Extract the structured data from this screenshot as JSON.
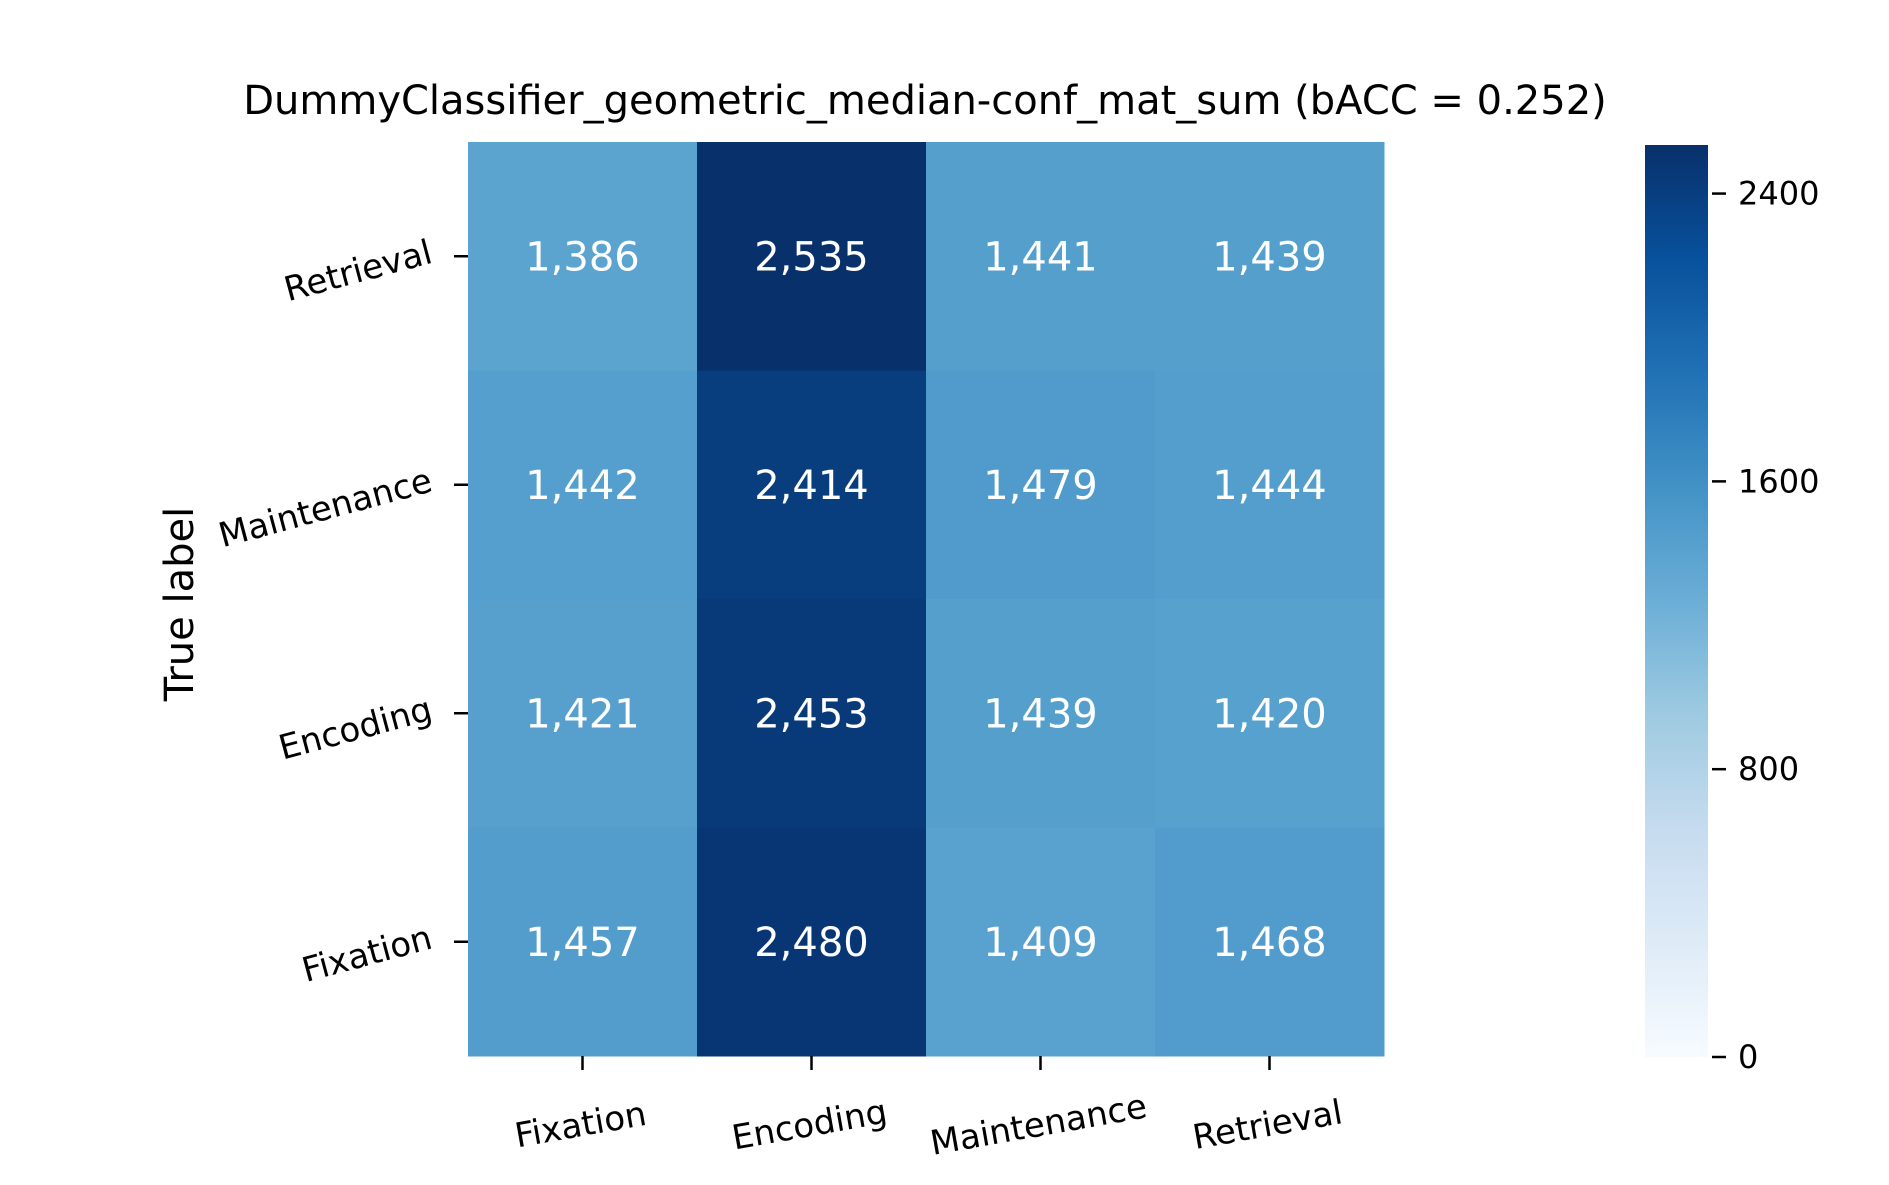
{
  "chart_data": {
    "type": "heatmap",
    "title": "DummyClassifier_geometric_median-conf_mat_sum (bACC = 0.252)",
    "ylabel": "True label",
    "xlabel": "",
    "x_categories": [
      "Fixation",
      "Encoding",
      "Maintenance",
      "Retrieval"
    ],
    "y_categories": [
      "Retrieval",
      "Maintenance",
      "Encoding",
      "Fixation"
    ],
    "values": [
      [
        1386,
        2535,
        1441,
        1439
      ],
      [
        1442,
        2414,
        1479,
        1444
      ],
      [
        1421,
        2453,
        1439,
        1420
      ],
      [
        1457,
        2480,
        1409,
        1468
      ]
    ],
    "value_labels": [
      [
        "1,386",
        "2,535",
        "1,441",
        "1,439"
      ],
      [
        "1,442",
        "2,414",
        "1,479",
        "1,444"
      ],
      [
        "1,421",
        "2,453",
        "1,439",
        "1,420"
      ],
      [
        "1,457",
        "2,480",
        "1,409",
        "1,468"
      ]
    ],
    "colormap": "Blues",
    "color_range": [
      0,
      2535
    ],
    "colorbar": {
      "ticks": [
        0,
        800,
        1600,
        2400
      ],
      "tick_labels": [
        "0",
        "800",
        "1600",
        "2400"
      ]
    },
    "cell_text_color": "#ffffff",
    "grid": false
  }
}
